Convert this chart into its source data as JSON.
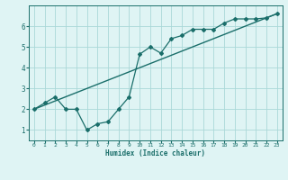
{
  "bg_color": "#dff4f4",
  "grid_color": "#aad8d8",
  "line_color": "#1a6e6a",
  "xlabel": "Humidex (Indice chaleur)",
  "xlim": [
    -0.5,
    23.5
  ],
  "ylim": [
    0.5,
    7.0
  ],
  "xticks": [
    0,
    1,
    2,
    3,
    4,
    5,
    6,
    7,
    8,
    9,
    10,
    11,
    12,
    13,
    14,
    15,
    16,
    17,
    18,
    19,
    20,
    21,
    22,
    23
  ],
  "yticks": [
    1,
    2,
    3,
    4,
    5,
    6
  ],
  "line1_x": [
    0,
    1,
    2,
    3,
    4,
    5,
    6,
    7,
    8,
    9,
    10,
    11,
    12,
    13,
    14,
    15,
    16,
    17,
    18,
    19,
    20,
    21,
    22,
    23
  ],
  "line1_y": [
    2.0,
    2.3,
    2.6,
    2.0,
    2.0,
    1.0,
    1.3,
    1.4,
    2.0,
    2.6,
    4.65,
    5.0,
    4.7,
    5.4,
    5.55,
    5.85,
    5.85,
    5.85,
    6.15,
    6.35,
    6.35,
    6.35,
    6.4,
    6.6
  ],
  "line2_x": [
    0,
    23
  ],
  "line2_y": [
    2.0,
    6.6
  ],
  "figsize": [
    3.2,
    2.0
  ],
  "dpi": 100
}
